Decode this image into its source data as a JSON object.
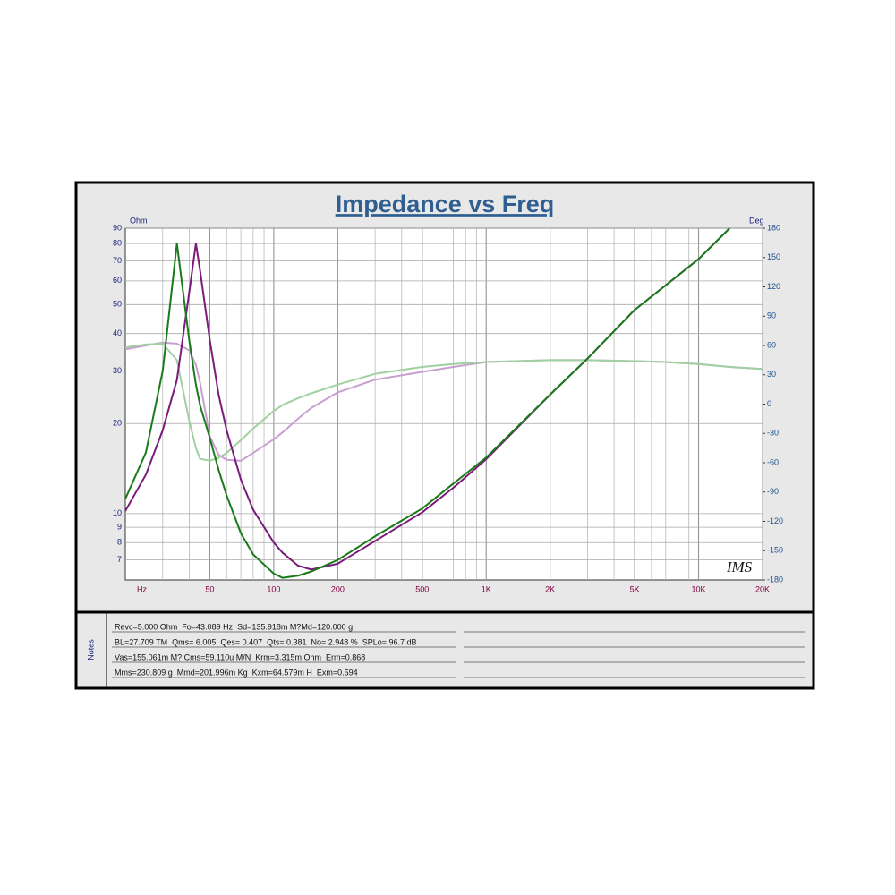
{
  "chart_data": {
    "type": "line",
    "title": "Impedance vs Freq",
    "y_label": "Ohm",
    "y2_label": "Deg",
    "x_label": "Hz",
    "logo": "IMS",
    "xscale": "log",
    "yscale": "log",
    "grid": true,
    "x": [
      20,
      25,
      30,
      35,
      40,
      43,
      45,
      50,
      55,
      60,
      70,
      80,
      100,
      110,
      130,
      150,
      200,
      300,
      500,
      700,
      1000,
      2000,
      3000,
      5000,
      7000,
      10000,
      14000,
      20000
    ],
    "xlim": [
      20,
      20000
    ],
    "xticks": [
      50,
      100,
      200,
      500,
      {
        "value": 1000,
        "label": "1K"
      },
      {
        "value": 2000,
        "label": "2K"
      },
      {
        "value": 5000,
        "label": "5K"
      },
      {
        "value": 10000,
        "label": "10K"
      },
      {
        "value": 20000,
        "label": "20K"
      }
    ],
    "ylim": [
      6,
      90
    ],
    "yticks": [
      7,
      8,
      9,
      10,
      20,
      30,
      40,
      50,
      60,
      70,
      80,
      90
    ],
    "y2lim": [
      -180,
      180
    ],
    "y2ticks": [
      -180,
      -150,
      -120,
      -90,
      -60,
      -30,
      0,
      30,
      60,
      90,
      120,
      150,
      180
    ],
    "series": [
      {
        "color": "#c8a0d0",
        "axis": "y2",
        "values": [
          56,
          60,
          63,
          62,
          55,
          40,
          22,
          -33,
          -52,
          -57,
          -58,
          -50,
          -36,
          -29,
          -15,
          -4,
          12,
          25,
          33,
          38,
          43,
          45,
          45,
          44,
          43,
          41,
          38,
          36
        ]
      },
      {
        "color": "#a0d0a0",
        "axis": "y2",
        "values": [
          58,
          61,
          62,
          45,
          -17,
          -45,
          -56,
          -58,
          -55,
          -50,
          -37,
          -25,
          -7,
          -1,
          6,
          11,
          20,
          31,
          38,
          41,
          43,
          45,
          45,
          44,
          43,
          41,
          38,
          36
        ]
      },
      {
        "color": "#7a1a7a",
        "values": [
          10.2,
          13.5,
          19,
          28,
          55,
          80,
          65,
          38,
          25,
          19,
          13,
          10.3,
          8,
          7.4,
          6.7,
          6.5,
          6.8,
          8.1,
          10.1,
          12.2,
          15.2,
          25,
          33,
          48,
          58,
          71,
          90,
          null
        ]
      },
      {
        "color": "#1a7a1a",
        "values": [
          11.2,
          16,
          30,
          80,
          38,
          27,
          23,
          17.9,
          14,
          11.5,
          8.6,
          7.3,
          6.3,
          6.1,
          6.2,
          6.4,
          7.0,
          8.4,
          10.4,
          12.6,
          15.4,
          25,
          33,
          48,
          58,
          71,
          90,
          null
        ]
      }
    ]
  },
  "notes": {
    "label": "Notes",
    "lines": [
      "Revc=5.000 Ohm  Fo=43.089 Hz  Sd=135.918m M?Md=120.000 g",
      "BL=27.709 TM  Qms= 6.005  Qes= 0.407  Qts= 0.381  No= 2.948 %  SPLo= 96.7 dB",
      "Vas=155.061m M? Cms=59.110u M/N  Krm=3.315m Ohm  Erm=0.868",
      "Mms=230.809 g  Mmd=201.996m Kg  Kxm=64.579m H  Exm=0.594"
    ]
  }
}
